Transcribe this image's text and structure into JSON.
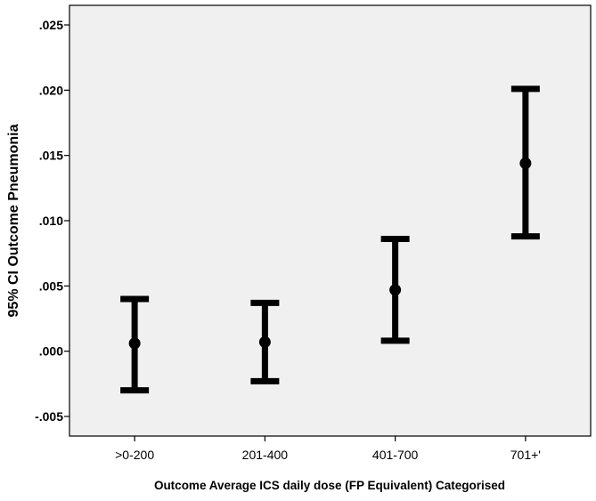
{
  "chart_data": {
    "type": "errorbar",
    "title": "",
    "xlabel": "Outcome Average ICS daily dose (FP Equivalent) Categorised",
    "ylabel": "95% CI Outcome Pneumonia",
    "categories": [
      ">0-200",
      "201-400",
      "401-700",
      "701+'"
    ],
    "series": [
      {
        "means": [
          0.0006,
          0.0007,
          0.0047,
          0.0144
        ],
        "lower": [
          -0.003,
          -0.0023,
          0.0008,
          0.0088
        ],
        "upper": [
          0.004,
          0.0037,
          0.0086,
          0.0201
        ]
      }
    ],
    "ylim": [
      -0.0065,
      0.0265
    ],
    "yticks": [
      -0.005,
      0.0,
      0.005,
      0.01,
      0.015,
      0.02,
      0.025
    ],
    "ytick_labels": [
      "-.005",
      ".000",
      ".005",
      ".010",
      ".015",
      ".020",
      ".025"
    ],
    "grid": false,
    "legend": "none",
    "colors": {
      "plot_background": "#f0f0f0",
      "marks": "#000000",
      "axis": "#000000"
    }
  }
}
